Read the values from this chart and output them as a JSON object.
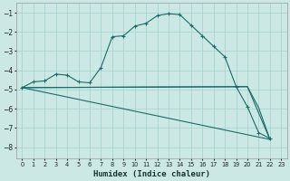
{
  "xlabel": "Humidex (Indice chaleur)",
  "bg_color": "#cce8e4",
  "grid_color": "#aad4d0",
  "line_color": "#1a6b6b",
  "xlim": [
    -0.5,
    23.5
  ],
  "ylim": [
    -8.6,
    -0.5
  ],
  "yticks": [
    -8,
    -7,
    -6,
    -5,
    -4,
    -3,
    -2,
    -1
  ],
  "xticks": [
    0,
    1,
    2,
    3,
    4,
    5,
    6,
    7,
    8,
    9,
    10,
    11,
    12,
    13,
    14,
    15,
    16,
    17,
    18,
    19,
    20,
    21,
    22,
    23
  ],
  "curve1_x": [
    0,
    1,
    2,
    3,
    4,
    5,
    6,
    7,
    8,
    9,
    10,
    11,
    12,
    13,
    14,
    15,
    16,
    17,
    18,
    19,
    20,
    21,
    22
  ],
  "curve1_y": [
    -4.9,
    -4.6,
    -4.55,
    -4.2,
    -4.25,
    -4.6,
    -4.65,
    -3.85,
    -2.25,
    -2.2,
    -1.7,
    -1.55,
    -1.15,
    -1.05,
    -1.1,
    -1.65,
    -2.2,
    -2.75,
    -3.3,
    -4.85,
    -5.9,
    -7.25,
    -7.55
  ],
  "curve2_x": [
    0,
    22
  ],
  "curve2_y": [
    -4.9,
    -7.6
  ],
  "curve3_x": [
    0,
    20,
    22
  ],
  "curve3_y": [
    -4.9,
    -4.85,
    -7.6
  ],
  "curve4_x": [
    0,
    20,
    21,
    22
  ],
  "curve4_y": [
    -4.9,
    -4.85,
    -5.95,
    -7.6
  ]
}
